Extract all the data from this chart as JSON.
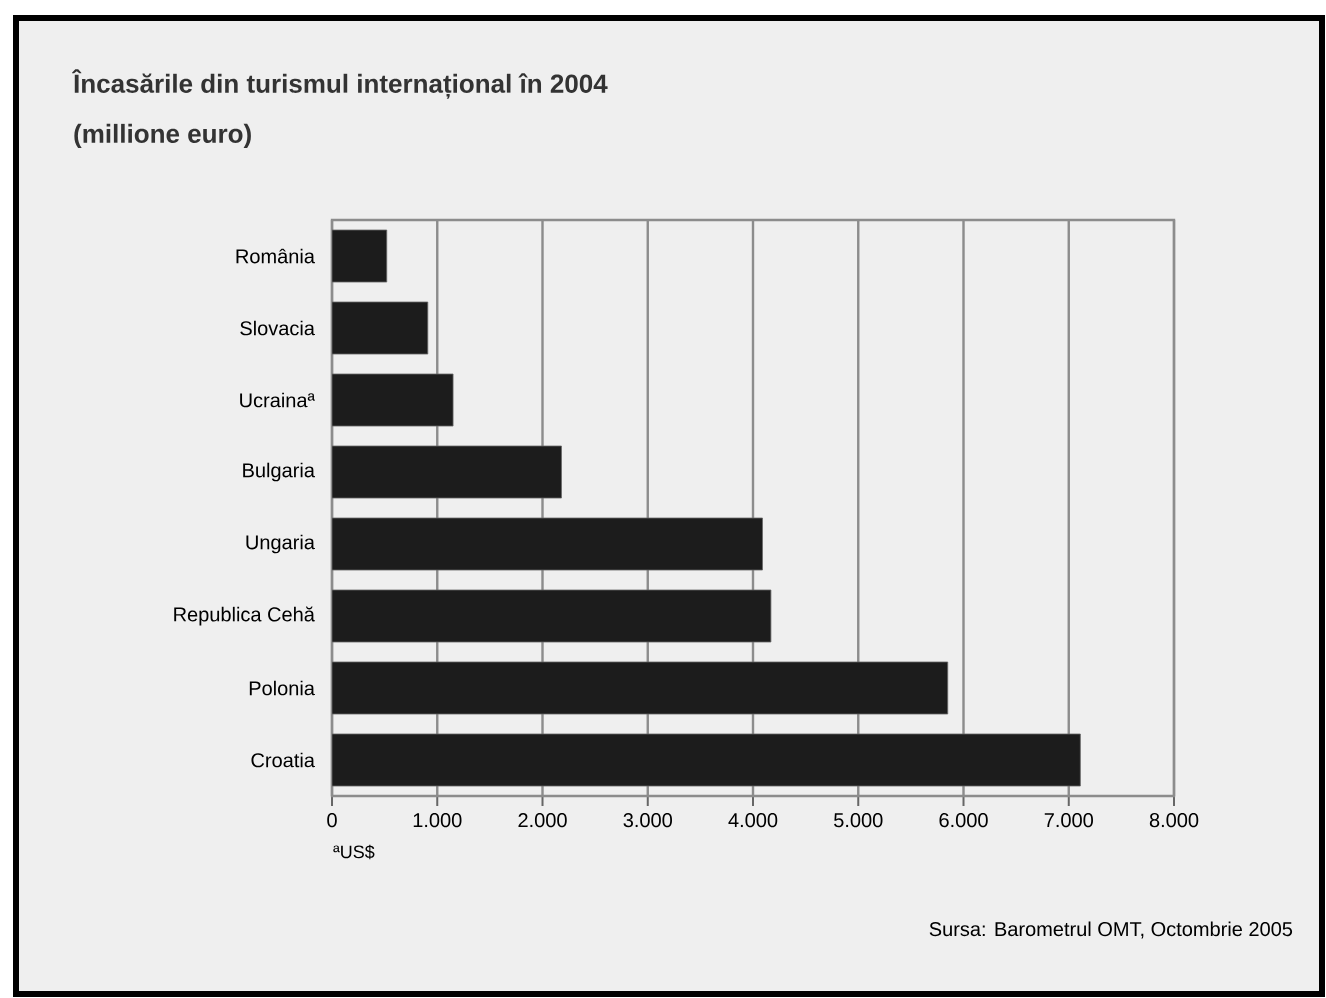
{
  "chart_data": {
    "type": "bar",
    "orientation": "horizontal",
    "title": "Încasările din turismul internațional în 2004",
    "subtitle": "(millione euro)",
    "categories": [
      "România",
      "Slovacia",
      "Ucrainaª",
      "Bulgaria",
      "Ungaria",
      "Republica Cehă",
      "Polonia",
      "Croatia"
    ],
    "values": [
      520,
      910,
      1150,
      2180,
      4090,
      4170,
      5850,
      7110
    ],
    "color": "#1c1c1c",
    "xlim": [
      0,
      8000
    ],
    "xticks": [
      {
        "value": 0,
        "label": "0"
      },
      {
        "value": 1000,
        "label": "1.000"
      },
      {
        "value": 2000,
        "label": "2.000"
      },
      {
        "value": 3000,
        "label": "3.000"
      },
      {
        "value": 4000,
        "label": "4.000"
      },
      {
        "value": 5000,
        "label": "5.000"
      },
      {
        "value": 6000,
        "label": "6.000"
      },
      {
        "value": 7000,
        "label": "7.000"
      },
      {
        "value": 8000,
        "label": "8.000"
      }
    ],
    "grid": "x",
    "annotations": [
      "ªUS$",
      "Sursa: Barometrul OMT, Octombrie 2005"
    ]
  }
}
